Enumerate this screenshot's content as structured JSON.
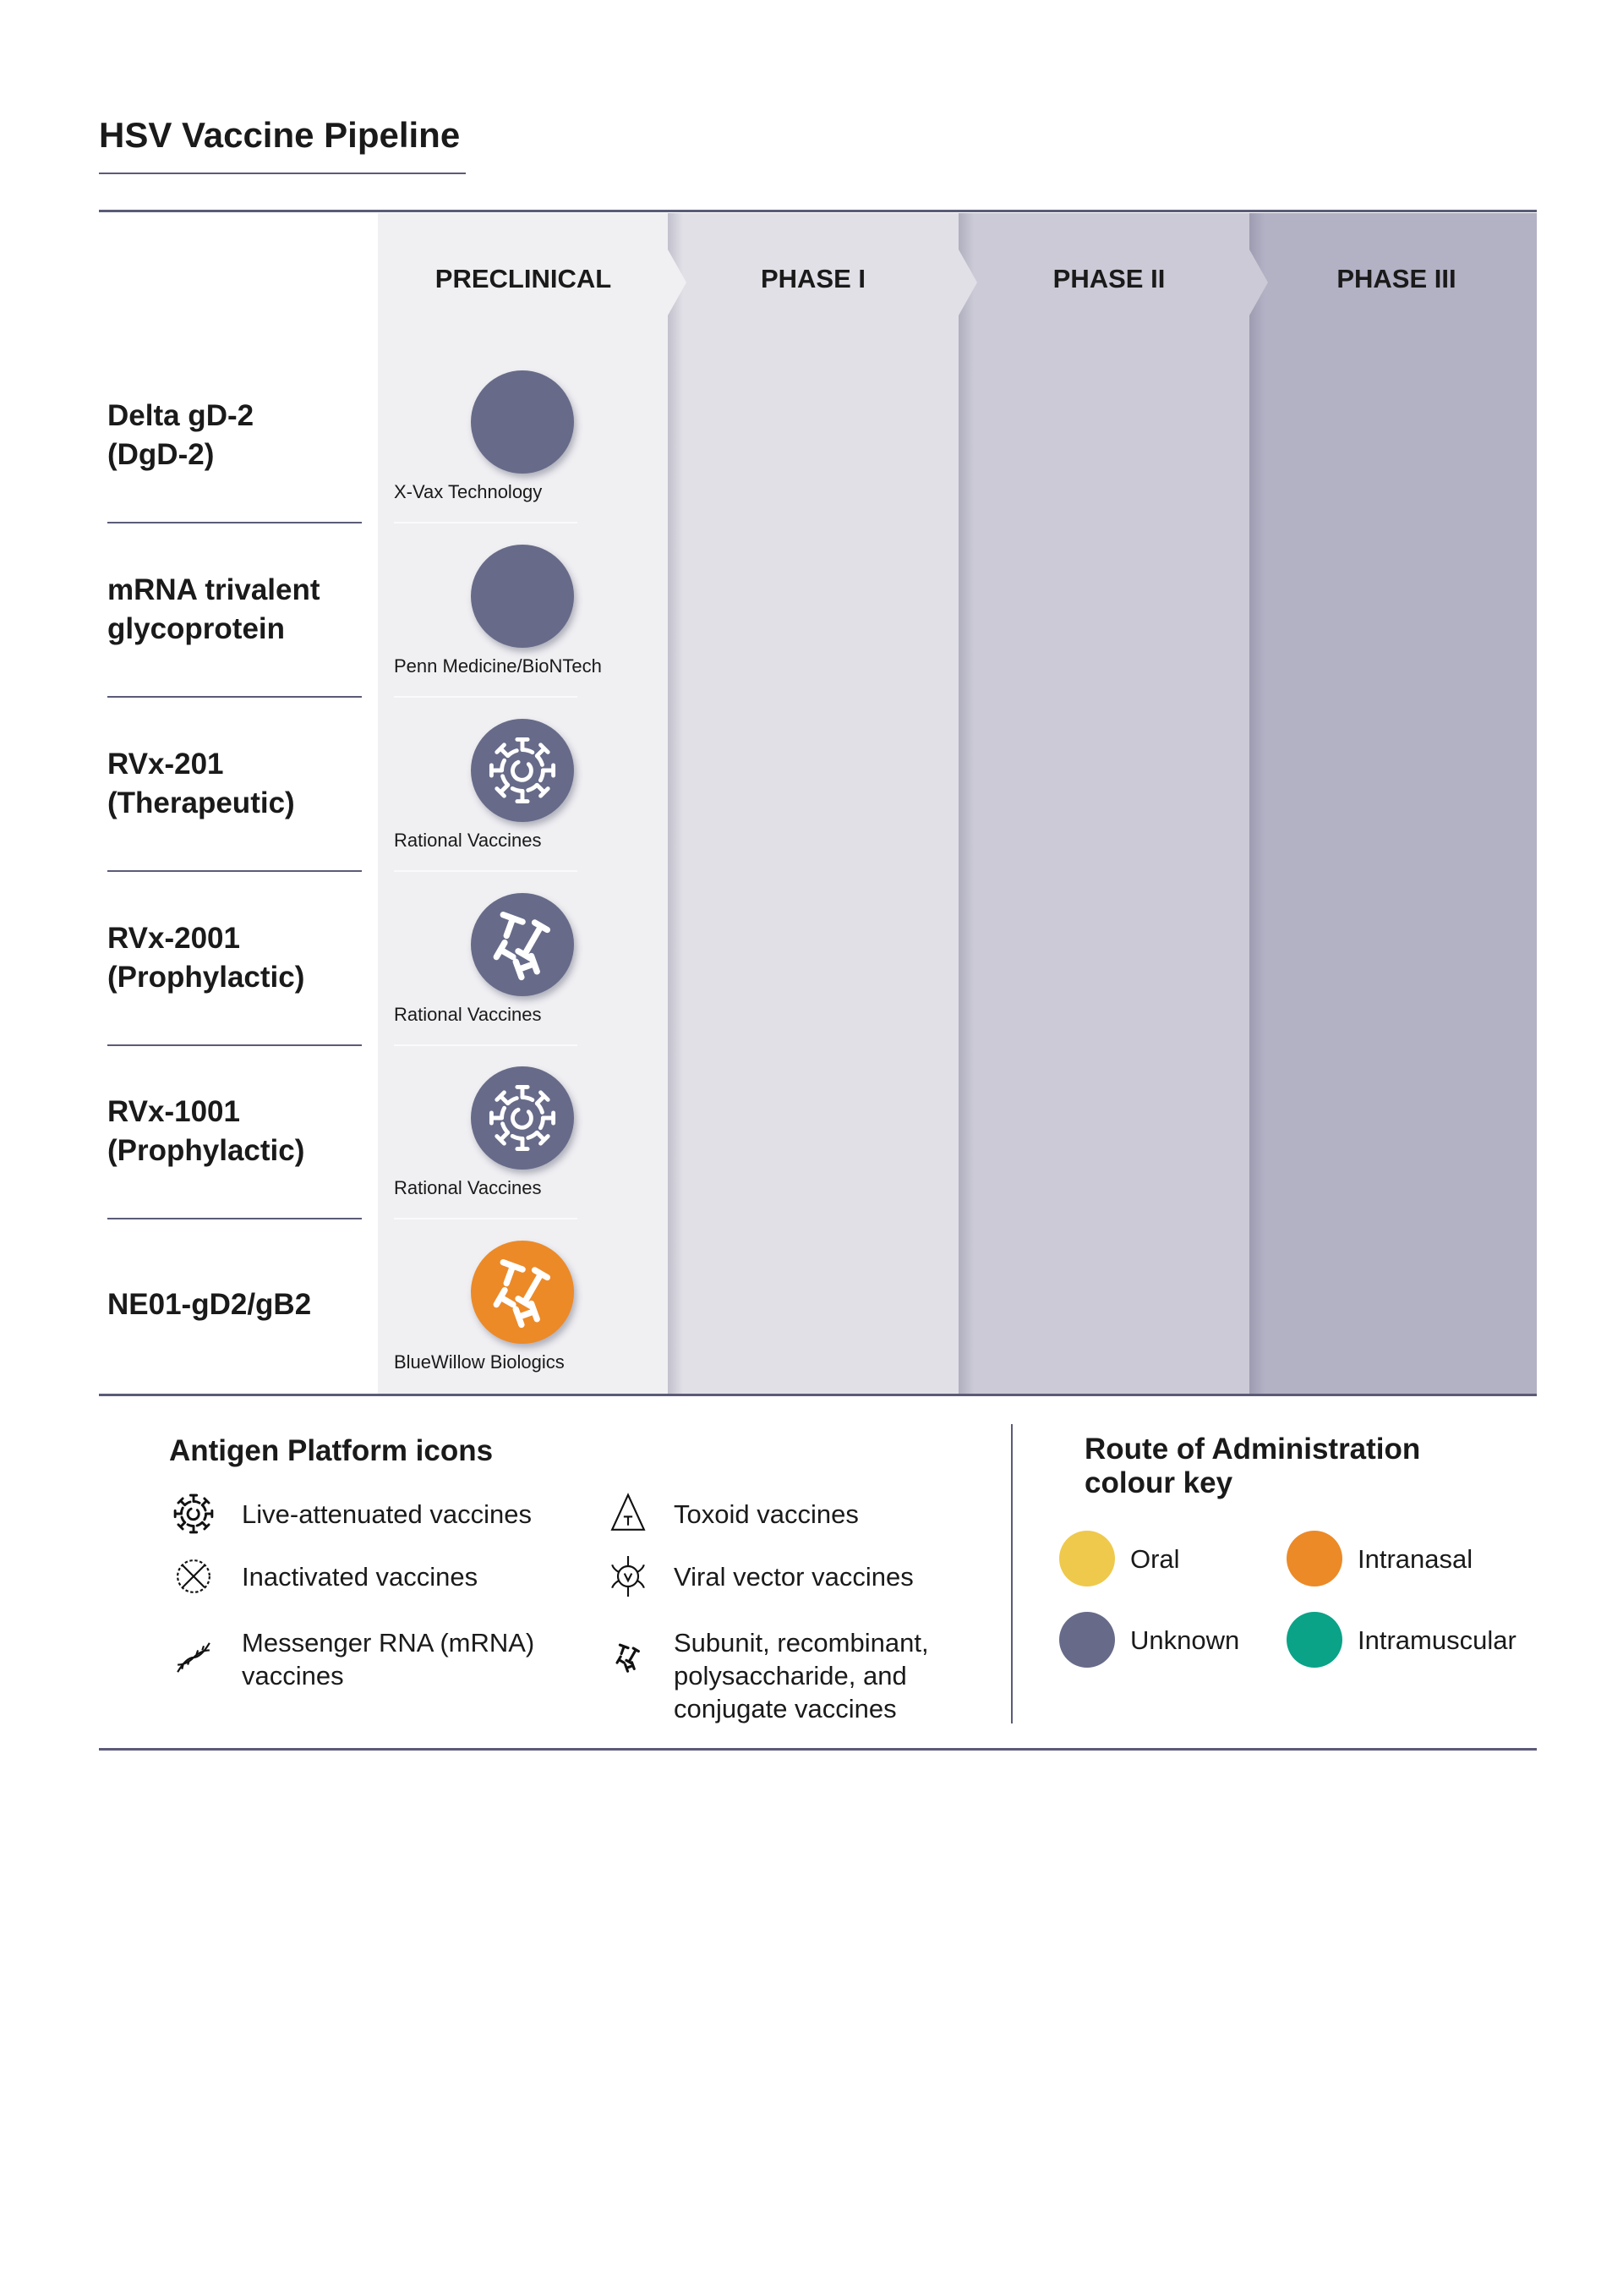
{
  "title": "HSV Vaccine Pipeline",
  "phases": [
    "PRECLINICAL",
    "PHASE I",
    "PHASE II",
    "PHASE III"
  ],
  "phase_colors": [
    "#f0f0f3",
    "#e1e0e7",
    "#cbcad6",
    "#b3b1c4"
  ],
  "rows": [
    {
      "line1": "Delta gD-2",
      "line2": "(DgD-2)",
      "company": "X-Vax Technology",
      "phase": "PRECLINICAL",
      "route": "Unknown",
      "platform_icon": "none"
    },
    {
      "line1": "mRNA trivalent",
      "line2": "glycoprotein",
      "company": "Penn Medicine/BioNTech",
      "phase": "PRECLINICAL",
      "route": "Unknown",
      "platform_icon": "none"
    },
    {
      "line1": "RVx-201",
      "line2": "(Therapeutic)",
      "company": "Rational Vaccines",
      "phase": "PRECLINICAL",
      "route": "Unknown",
      "platform_icon": "live-attenuated-icon"
    },
    {
      "line1": "RVx-2001",
      "line2": "(Prophylactic)",
      "company": "Rational Vaccines",
      "phase": "PRECLINICAL",
      "route": "Unknown",
      "platform_icon": "subunit-icon"
    },
    {
      "line1": "RVx-1001",
      "line2": "(Prophylactic)",
      "company": "Rational Vaccines",
      "phase": "PRECLINICAL",
      "route": "Unknown",
      "platform_icon": "live-attenuated-icon"
    },
    {
      "line1": "NE01-gD2/gB2",
      "line2": "",
      "company": "BlueWillow Biologics",
      "phase": "PRECLINICAL",
      "route": "Intranasal",
      "platform_icon": "subunit-icon"
    }
  ],
  "antigen_legend": {
    "title": "Antigen Platform icons",
    "items": [
      {
        "label": "Live-attenuated vaccines",
        "icon": "live-attenuated-icon"
      },
      {
        "label": "Toxoid vaccines",
        "icon": "toxoid-icon"
      },
      {
        "label": "Inactivated vaccines",
        "icon": "inactivated-icon"
      },
      {
        "label": "Viral vector vaccines",
        "icon": "viral-vector-icon"
      },
      {
        "label_lines": [
          "Messenger RNA (mRNA)",
          "vaccines"
        ],
        "icon": "mrna-icon"
      },
      {
        "label_lines": [
          "Subunit, recombinant,",
          "polysaccharide, and",
          "conjugate vaccines"
        ],
        "icon": "subunit-icon"
      }
    ]
  },
  "route_legend": {
    "title_lines": [
      "Route of Administration",
      "colour key"
    ],
    "items": [
      {
        "label": "Oral",
        "color": "#efc94c"
      },
      {
        "label": "Intranasal",
        "color": "#ec8a28"
      },
      {
        "label": "Unknown",
        "color": "#676b89"
      },
      {
        "label": "Intramuscular",
        "color": "#0aa387"
      }
    ]
  }
}
